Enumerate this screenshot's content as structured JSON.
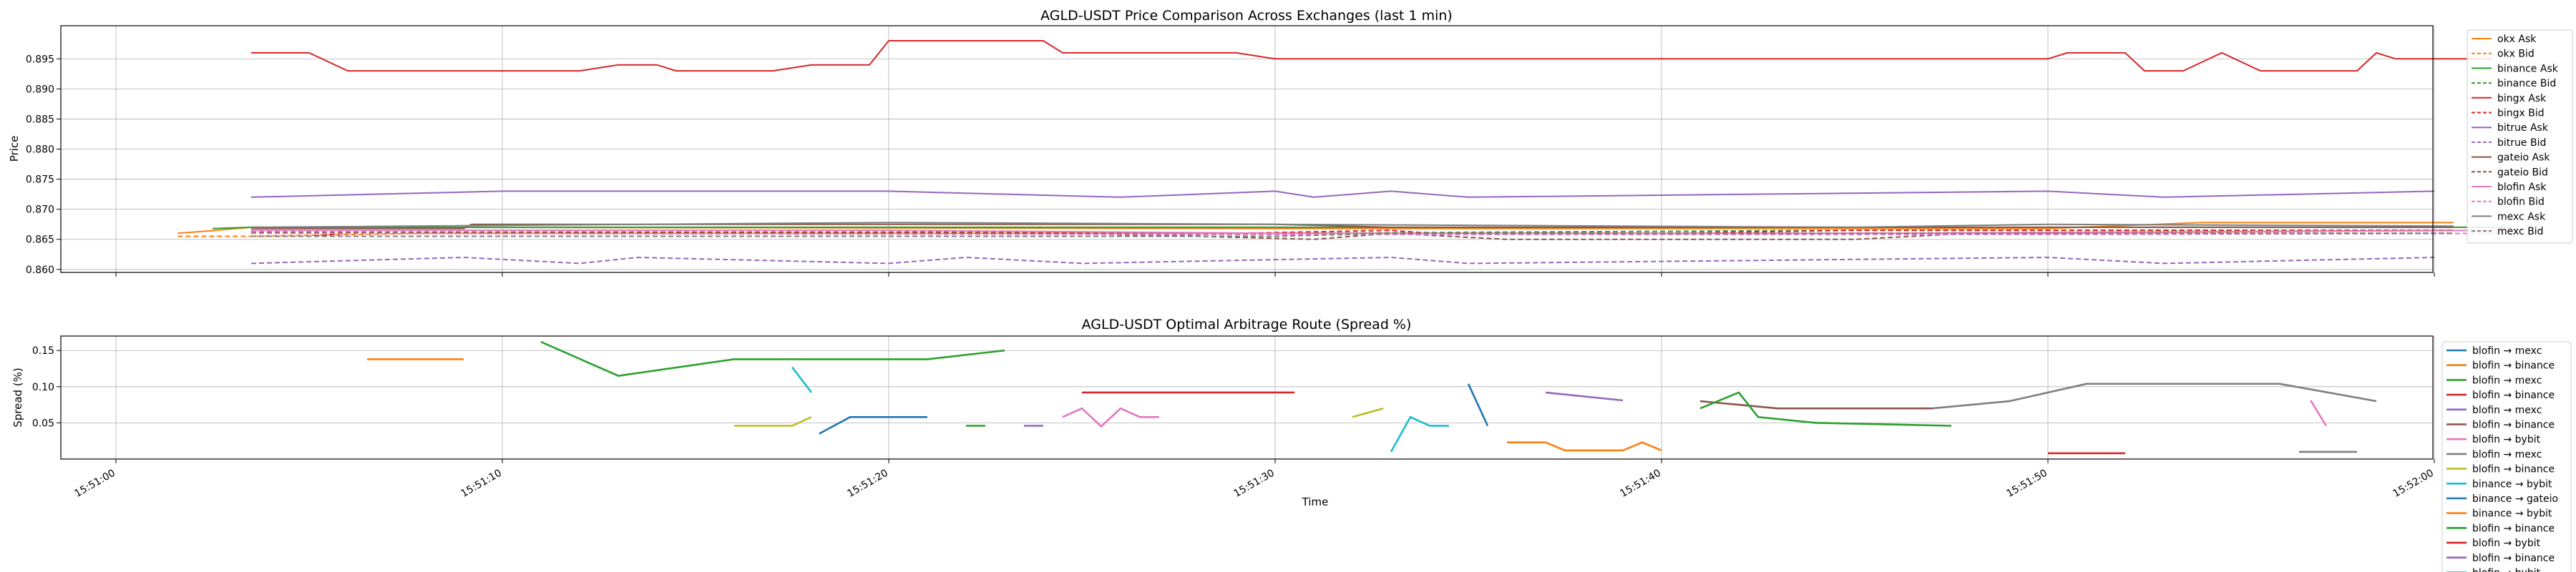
{
  "chart_data": [
    {
      "type": "line",
      "title": "AGLD-USDT Price Comparison Across Exchanges (last 1 min)",
      "xlabel": "",
      "ylabel": "Price",
      "ylim": [
        0.8595,
        0.9005
      ],
      "yticks": [
        "0.860",
        "0.865",
        "0.870",
        "0.875",
        "0.880",
        "0.885",
        "0.890",
        "0.895"
      ],
      "xlim": [
        "15:51:00",
        "15:52:02"
      ],
      "grid": true,
      "legend_position": "right",
      "series": [
        {
          "name": "okx Ask",
          "color": "#ff7f0e",
          "dash": false,
          "points": [
            [
              "15:51:01.6",
              0.866
            ],
            [
              "15:51:02.6",
              0.8665
            ],
            [
              "15:51:03.5",
              0.867
            ],
            [
              "15:51:08",
              0.867
            ],
            [
              "15:51:30",
              0.8668
            ],
            [
              "15:51:50",
              0.8668
            ],
            [
              "15:51:54",
              0.8678
            ],
            [
              "15:52:00.5",
              0.8678
            ]
          ]
        },
        {
          "name": "okx Bid",
          "color": "#ff7f0e",
          "dash": true,
          "points": [
            [
              "15:51:01.6",
              0.8655
            ],
            [
              "15:51:03.5",
              0.8655
            ],
            [
              "15:51:08",
              0.866
            ],
            [
              "15:51:30",
              0.866
            ],
            [
              "15:51:50",
              0.866
            ],
            [
              "15:52:00.5",
              0.8665
            ]
          ]
        },
        {
          "name": "binance Ask",
          "color": "#2ca02c",
          "dash": false,
          "points": [
            [
              "15:51:02.5",
              0.8668
            ],
            [
              "15:51:03.5",
              0.867
            ],
            [
              "15:51:15",
              0.867
            ],
            [
              "15:51:30",
              0.867
            ],
            [
              "15:51:45",
              0.867
            ],
            [
              "15:52:00.5",
              0.867
            ],
            [
              "15:52:02",
              0.867
            ]
          ]
        },
        {
          "name": "binance Bid",
          "color": "#2ca02c",
          "dash": true,
          "points": [
            [
              "15:51:03.5",
              0.866
            ],
            [
              "15:51:30",
              0.866
            ],
            [
              "15:51:45",
              0.8665
            ],
            [
              "15:52:00.5",
              0.8665
            ]
          ]
        },
        {
          "name": "bingx Ask",
          "color": "#d62728",
          "dash": false,
          "points": [
            [
              "15:51:03.5",
              0.896
            ],
            [
              "15:51:05",
              0.896
            ],
            [
              "15:51:06",
              0.893
            ],
            [
              "15:51:12",
              0.893
            ],
            [
              "15:51:13",
              0.894
            ],
            [
              "15:51:14",
              0.894
            ],
            [
              "15:51:14.5",
              0.893
            ],
            [
              "15:51:17",
              0.893
            ],
            [
              "15:51:18",
              0.894
            ],
            [
              "15:51:19.5",
              0.894
            ],
            [
              "15:51:20",
              0.898
            ],
            [
              "15:51:24",
              0.898
            ],
            [
              "15:51:24.5",
              0.896
            ],
            [
              "15:51:29",
              0.896
            ],
            [
              "15:51:30",
              0.895
            ],
            [
              "15:51:50",
              0.895
            ],
            [
              "15:51:50.5",
              0.896
            ],
            [
              "15:51:52",
              0.896
            ],
            [
              "15:51:52.5",
              0.893
            ],
            [
              "15:51:53.5",
              0.893
            ],
            [
              "15:51:54.5",
              0.896
            ],
            [
              "15:51:55.5",
              0.893
            ],
            [
              "15:51:58",
              0.893
            ],
            [
              "15:51:58.5",
              0.896
            ],
            [
              "15:51:59",
              0.895
            ],
            [
              "15:52:01.5",
              0.895
            ]
          ]
        },
        {
          "name": "bingx Bid",
          "color": "#d62728",
          "dash": true,
          "points": [
            [
              "15:51:03.5",
              0.8655
            ],
            [
              "15:51:05",
              0.8655
            ],
            [
              "15:51:06",
              0.866
            ],
            [
              "15:51:25",
              0.866
            ],
            [
              "15:51:27",
              0.8655
            ],
            [
              "15:51:29",
              0.866
            ],
            [
              "15:51:33",
              0.8665
            ],
            [
              "15:51:34",
              0.866
            ],
            [
              "15:51:40",
              0.866
            ],
            [
              "15:51:45",
              0.8665
            ],
            [
              "15:52:00.5",
              0.8665
            ]
          ]
        },
        {
          "name": "bitrue Ask",
          "color": "#9467bd",
          "dash": false,
          "points": [
            [
              "15:51:03.5",
              0.872
            ],
            [
              "15:51:10",
              0.873
            ],
            [
              "15:51:20",
              0.873
            ],
            [
              "15:51:26",
              0.872
            ],
            [
              "15:51:30",
              0.873
            ],
            [
              "15:51:31",
              0.872
            ],
            [
              "15:51:33",
              0.873
            ],
            [
              "15:51:35",
              0.872
            ],
            [
              "15:51:50",
              0.873
            ],
            [
              "15:51:53",
              0.872
            ],
            [
              "15:52:00",
              0.873
            ]
          ]
        },
        {
          "name": "bitrue Bid",
          "color": "#9467bd",
          "dash": true,
          "points": [
            [
              "15:51:03.5",
              0.861
            ],
            [
              "15:51:09",
              0.862
            ],
            [
              "15:51:12",
              0.861
            ],
            [
              "15:51:13.5",
              0.862
            ],
            [
              "15:51:20",
              0.861
            ],
            [
              "15:51:22",
              0.862
            ],
            [
              "15:51:25",
              0.861
            ],
            [
              "15:51:33",
              0.862
            ],
            [
              "15:51:35",
              0.861
            ],
            [
              "15:51:50",
              0.862
            ],
            [
              "15:51:53",
              0.861
            ],
            [
              "15:52:00",
              0.862
            ]
          ]
        },
        {
          "name": "gateio Ask",
          "color": "#8c564b",
          "dash": false,
          "points": [
            [
              "15:51:03.5",
              0.8668
            ],
            [
              "15:51:09",
              0.8668
            ],
            [
              "15:51:09.2",
              0.8675
            ],
            [
              "15:51:30",
              0.8675
            ],
            [
              "15:51:33",
              0.867
            ],
            [
              "15:51:50",
              0.867
            ],
            [
              "15:52:00.5",
              0.867
            ]
          ]
        },
        {
          "name": "gateio Bid",
          "color": "#8c564b",
          "dash": true,
          "points": [
            [
              "15:51:03.5",
              0.8662
            ],
            [
              "15:51:25",
              0.8662
            ],
            [
              "15:51:28",
              0.8655
            ],
            [
              "15:51:31",
              0.865
            ],
            [
              "15:51:33",
              0.866
            ],
            [
              "15:51:36",
              0.865
            ],
            [
              "15:51:45",
              0.865
            ],
            [
              "15:51:48",
              0.866
            ],
            [
              "15:52:00.5",
              0.866
            ]
          ]
        },
        {
          "name": "blofin Ask",
          "color": "#e377c2",
          "dash": false,
          "points": [
            [
              "15:51:03.5",
              0.8665
            ],
            [
              "15:51:20",
              0.8665
            ],
            [
              "15:51:30",
              0.866
            ],
            [
              "15:51:45",
              0.866
            ],
            [
              "15:52:02",
              0.8665
            ]
          ]
        },
        {
          "name": "blofin Bid",
          "color": "#e377c2",
          "dash": true,
          "points": [
            [
              "15:51:03.5",
              0.866
            ],
            [
              "15:51:30",
              0.8658
            ],
            [
              "15:51:50",
              0.8658
            ],
            [
              "15:52:02",
              0.866
            ]
          ]
        },
        {
          "name": "mexc Ask",
          "color": "#7f7f7f",
          "dash": false,
          "points": [
            [
              "15:51:03.5",
              0.867
            ],
            [
              "15:51:20",
              0.8678
            ],
            [
              "15:51:30",
              0.8675
            ],
            [
              "15:51:45",
              0.867
            ],
            [
              "15:51:50",
              0.8675
            ],
            [
              "15:52:00.5",
              0.8672
            ]
          ]
        },
        {
          "name": "mexc Bid",
          "color": "#7f7f7f",
          "dash": true,
          "points": [
            [
              "15:51:03.5",
              0.8655
            ],
            [
              "15:51:30",
              0.8655
            ],
            [
              "15:51:33",
              0.866
            ],
            [
              "15:51:50",
              0.866
            ],
            [
              "15:52:00.5",
              0.866
            ]
          ]
        }
      ]
    },
    {
      "type": "line",
      "title": "AGLD-USDT Optimal Arbitrage Route (Spread %)",
      "xlabel": "Time",
      "ylabel": "Spread (%)",
      "ylim": [
        0.0,
        0.17
      ],
      "yticks": [
        "0.05",
        "0.10",
        "0.15"
      ],
      "xlim": [
        "15:51:00",
        "15:52:02"
      ],
      "xticks": [
        "15:51:00",
        "15:51:10",
        "15:51:20",
        "15:51:30",
        "15:51:40",
        "15:51:50",
        "15:52:00"
      ],
      "grid": true,
      "legend_position": "right",
      "series": [
        {
          "name": "blofin → mexc",
          "color": "#1f77b4",
          "points": [
            [
              "15:51:18.2",
              0.035
            ],
            [
              "15:51:19",
              0.058
            ],
            [
              "15:51:21",
              0.058
            ]
          ]
        },
        {
          "name": "blofin → binance",
          "color": "#ff7f0e",
          "points": [
            [
              "15:51:06.5",
              0.138
            ],
            [
              "15:51:09",
              0.138
            ]
          ]
        },
        {
          "name": "blofin → mexc",
          "color": "#2ca02c",
          "points": [
            [
              "15:51:11",
              0.162
            ],
            [
              "15:51:13",
              0.115
            ],
            [
              "15:51:16",
              0.138
            ],
            [
              "15:51:21",
              0.138
            ],
            [
              "15:51:23",
              0.15
            ]
          ]
        },
        {
          "name": "blofin → binance",
          "color": "#d62728",
          "points": [
            [
              "15:51:25",
              0.092
            ],
            [
              "15:51:30.5",
              0.092
            ]
          ]
        },
        {
          "name": "blofin → mexc",
          "color": "#9467bd",
          "points": [
            [
              "15:51:23.5",
              0.046
            ],
            [
              "15:51:24",
              0.046
            ]
          ]
        },
        {
          "name": "blofin → binance",
          "color": "#8c564b",
          "points": [
            [
              "15:51:41",
              0.08
            ],
            [
              "15:51:42",
              0.075
            ],
            [
              "15:51:43",
              0.07
            ],
            [
              "15:51:47",
              0.07
            ]
          ]
        },
        {
          "name": "blofin → bybit",
          "color": "#e377c2",
          "points": [
            [
              "15:51:24.5",
              0.058
            ],
            [
              "15:51:25",
              0.07
            ],
            [
              "15:51:25.5",
              0.045
            ],
            [
              "15:51:26",
              0.07
            ],
            [
              "15:51:26.5",
              0.058
            ],
            [
              "15:51:27",
              0.058
            ]
          ]
        },
        {
          "name": "blofin → mexc",
          "color": "#7f7f7f",
          "points": [
            [
              "15:51:47",
              0.07
            ],
            [
              "15:51:49",
              0.08
            ],
            [
              "15:51:51",
              0.104
            ],
            [
              "15:51:56",
              0.104
            ],
            [
              "15:51:58.5",
              0.08
            ]
          ]
        },
        {
          "name": "blofin → binance",
          "color": "#bcbd22",
          "points": [
            [
              "15:51:16",
              0.046
            ],
            [
              "15:51:17.5",
              0.046
            ],
            [
              "15:51:18",
              0.058
            ]
          ]
        },
        {
          "name": "binance → bybit",
          "color": "#17becf",
          "points": [
            [
              "15:51:17.5",
              0.127
            ],
            [
              "15:51:18",
              0.092
            ]
          ]
        },
        {
          "name": "binance → gateio",
          "color": "#1f77b4",
          "points": [
            [
              "15:51:35",
              0.104
            ],
            [
              "15:51:35.5",
              0.046
            ]
          ]
        },
        {
          "name": "binance → bybit",
          "color": "#ff7f0e",
          "points": [
            [
              "15:51:36",
              0.023
            ],
            [
              "15:51:37",
              0.023
            ],
            [
              "15:51:37.5",
              0.012
            ],
            [
              "15:51:39",
              0.012
            ],
            [
              "15:51:39.5",
              0.023
            ],
            [
              "15:51:40",
              0.012
            ]
          ]
        },
        {
          "name": "blofin → binance",
          "color": "#2ca02c",
          "points": [
            [
              "15:51:41",
              0.07
            ],
            [
              "15:51:42",
              0.092
            ],
            [
              "15:51:42.5",
              0.058
            ],
            [
              "15:51:44",
              0.05
            ],
            [
              "15:51:47.5",
              0.046
            ]
          ]
        },
        {
          "name": "blofin → bybit",
          "color": "#d62728",
          "points": [
            [
              "15:51:50",
              0.008
            ],
            [
              "15:51:52",
              0.008
            ]
          ]
        },
        {
          "name": "blofin → binance",
          "color": "#9467bd",
          "points": [
            [
              "15:51:37",
              0.092
            ],
            [
              "15:51:39",
              0.081
            ]
          ]
        }
      ],
      "extra_segments": [
        {
          "color": "#bcbd22",
          "points": [
            [
              "15:51:32",
              0.058
            ],
            [
              "15:51:32.8",
              0.07
            ]
          ]
        },
        {
          "color": "#17becf",
          "points": [
            [
              "15:51:33",
              0.01
            ],
            [
              "15:51:33.5",
              0.058
            ],
            [
              "15:51:34",
              0.046
            ],
            [
              "15:51:34.5",
              0.046
            ]
          ]
        },
        {
          "color": "#e377c2",
          "points": [
            [
              "15:51:56.8",
              0.081
            ],
            [
              "15:51:57.2",
              0.046
            ]
          ]
        },
        {
          "color": "#7f7f7f",
          "points": [
            [
              "15:51:56.5",
              0.01
            ],
            [
              "15:51:58",
              0.01
            ]
          ]
        },
        {
          "color": "#2ca02c",
          "points": [
            [
              "15:51:22",
              0.046
            ],
            [
              "15:51:22.5",
              0.046
            ]
          ]
        }
      ],
      "legend_overflow": "blofin → bybit"
    }
  ]
}
